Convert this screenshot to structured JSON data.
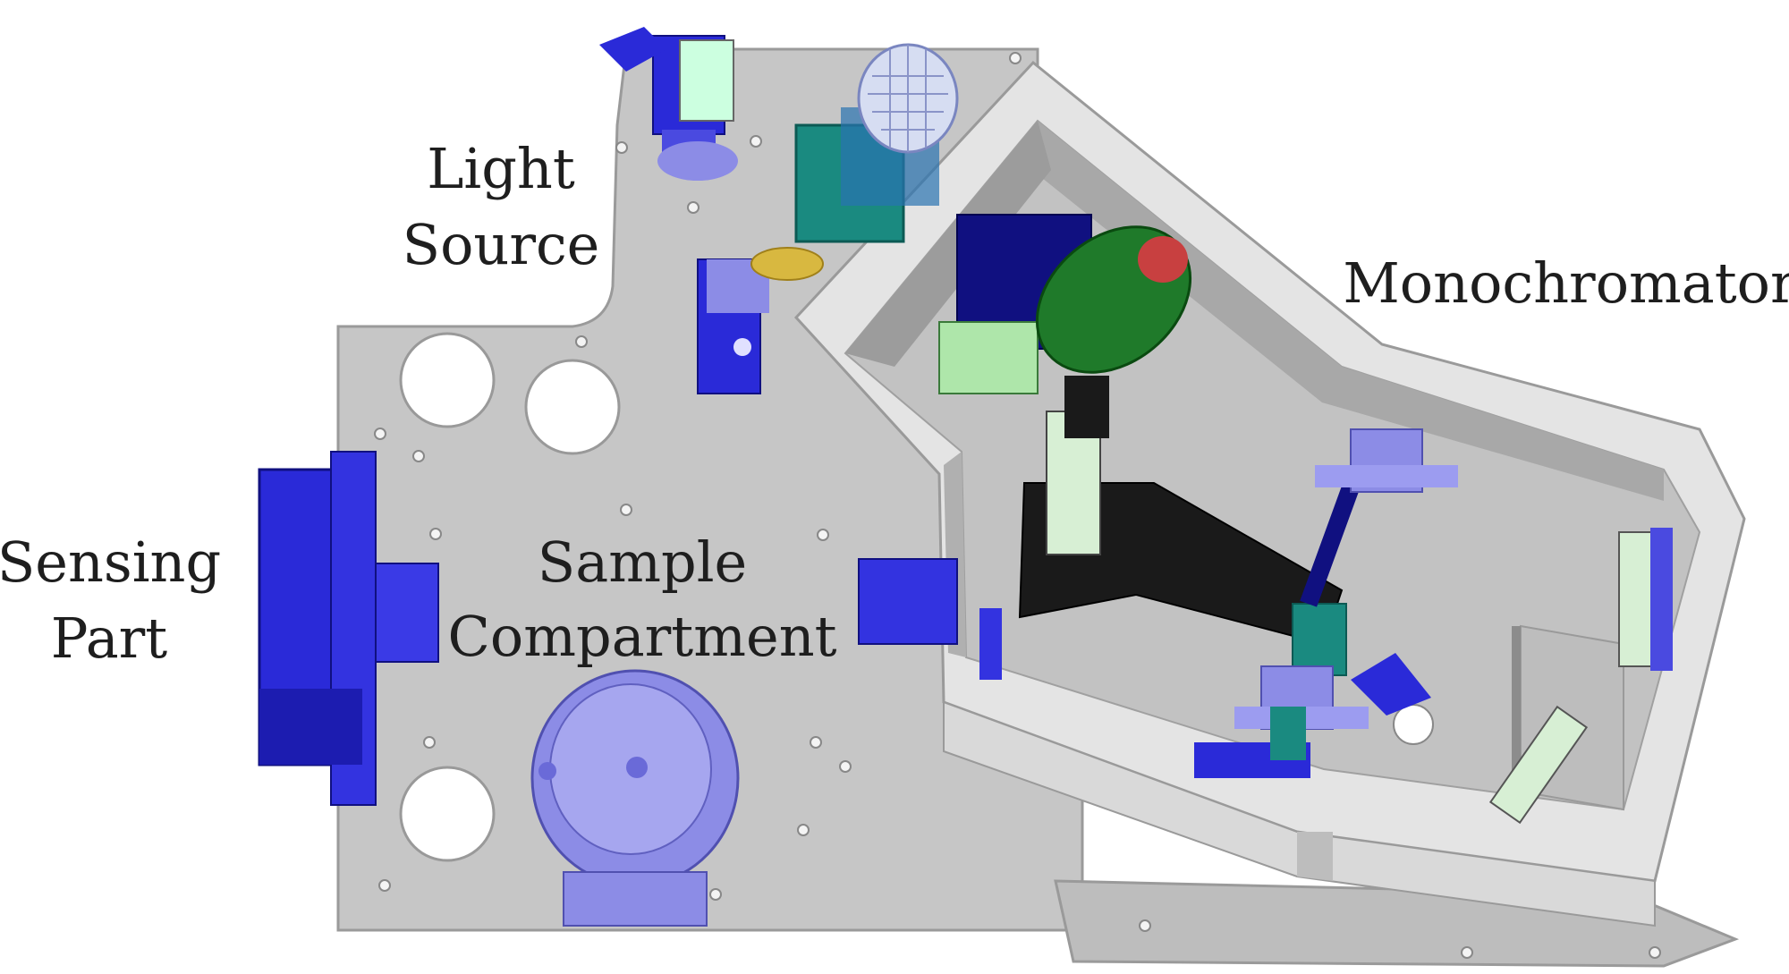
{
  "figure": {
    "labels": {
      "light_source": [
        "Light",
        "Source"
      ],
      "monochromator": "Monochromator",
      "sensing_part": [
        "Sensing",
        "Part"
      ],
      "sample_compartment": [
        "Sample",
        "Compartment"
      ]
    },
    "colors": {
      "plate": "#c6c6c6",
      "plate_edge": "#9a9a9a",
      "wall": "#ebebeb",
      "wall_dark": "#a8a8a8",
      "blue": "#2a2ad8",
      "navy": "#101080",
      "lavender": "#8c8ce6",
      "teal": "#1a8a80",
      "green": "#1f7a2a",
      "light_green": "#aee6aa",
      "black_part": "#1a1a1a",
      "yellow": "#d8b840"
    }
  }
}
